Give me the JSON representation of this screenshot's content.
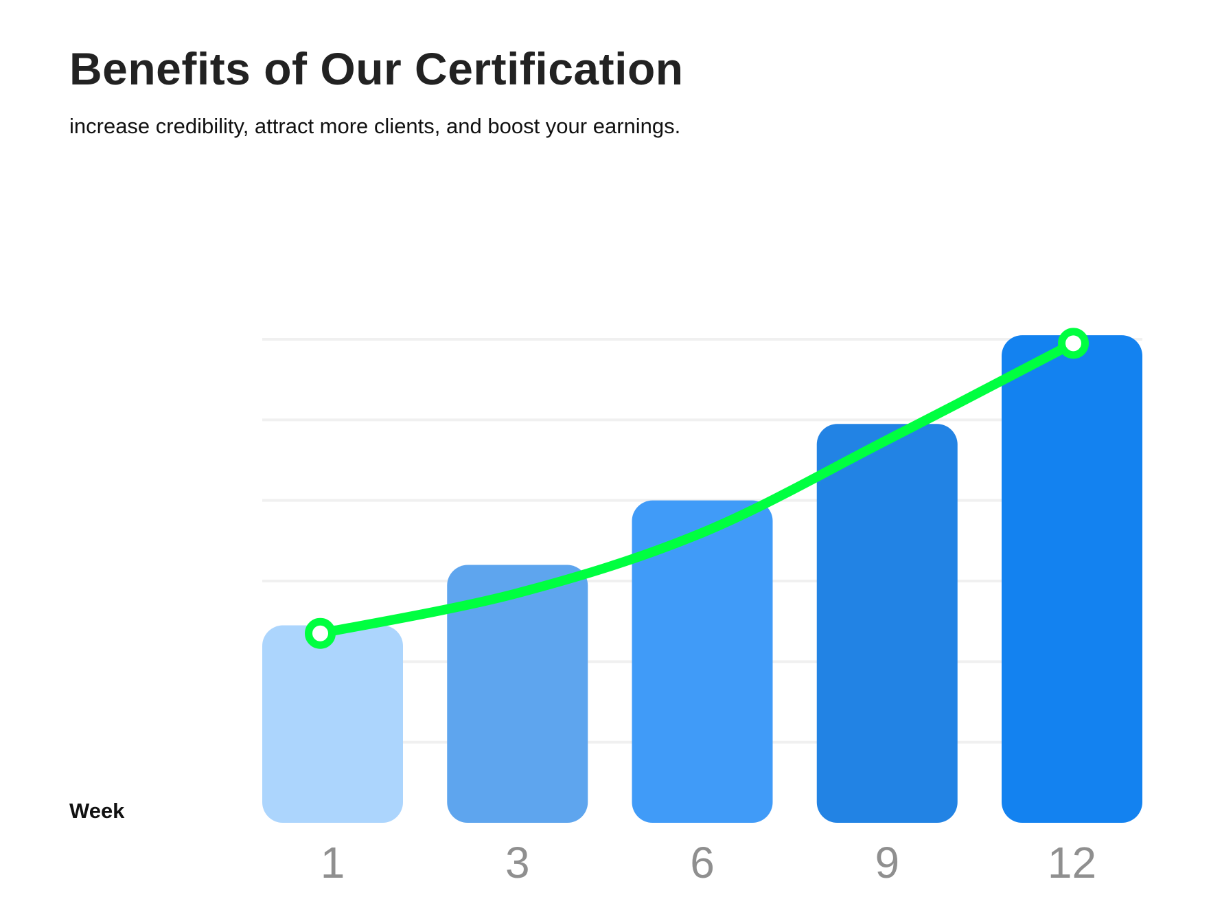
{
  "header": {
    "title": "Benefits of Our Certification",
    "subtitle": "increase credibility, attract more clients, and boost your earnings."
  },
  "chart_data": {
    "type": "bar",
    "xlabel": "Week",
    "ylabel": "",
    "categories": [
      "1",
      "3",
      "6",
      "9",
      "12"
    ],
    "values": [
      2.45,
      3.2,
      4.0,
      4.95,
      6.05
    ],
    "ylim": [
      0,
      6
    ],
    "grid": true,
    "bar_colors": [
      "#acd5fd",
      "#5ea5ee",
      "#409bf8",
      "#2283e4",
      "#1382f0"
    ],
    "trend_line": {
      "values": [
        2.35,
        2.85,
        3.6,
        4.75,
        5.95
      ],
      "color": "#00ff40",
      "marker_fill": "#ffffff",
      "markers_at": [
        0,
        4
      ]
    },
    "grid_color": "#f0f0f0",
    "tick_color": "#8f8f8f"
  }
}
